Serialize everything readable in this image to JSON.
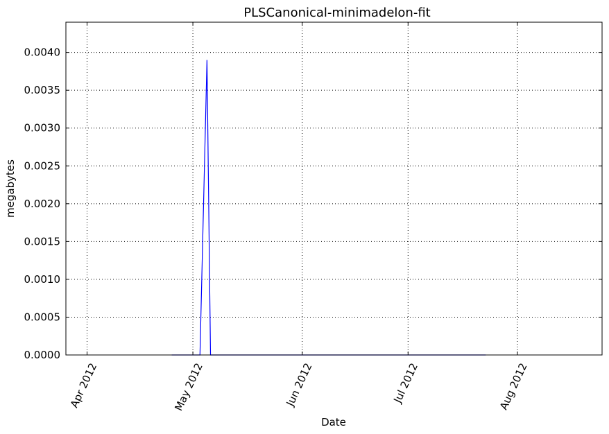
{
  "chart_data": {
    "type": "line",
    "title": "PLSCanonical-minimadelon-fit",
    "xlabel": "Date",
    "ylabel": "megabytes",
    "x_axis_type": "date",
    "xlim": [
      "2012-03-26",
      "2012-08-25"
    ],
    "ylim": [
      0,
      0.0044
    ],
    "grid": true,
    "legend": "none",
    "x_tick_values": [
      "2012-04-01",
      "2012-05-01",
      "2012-06-01",
      "2012-07-01",
      "2012-08-01"
    ],
    "x_tick_labels": [
      "Apr 2012",
      "May 2012",
      "Jun 2012",
      "Jul 2012",
      "Aug 2012"
    ],
    "y_tick_values": [
      0,
      0.0005,
      0.001,
      0.0015,
      0.002,
      0.0025,
      0.003,
      0.0035,
      0.004
    ],
    "y_tick_labels": [
      "0.0000",
      "0.0005",
      "0.0010",
      "0.0015",
      "0.0020",
      "0.0025",
      "0.0030",
      "0.0035",
      "0.0040"
    ],
    "series": [
      {
        "color": "#0000ff",
        "points": [
          {
            "x": "2012-04-25",
            "y": 0
          },
          {
            "x": "2012-05-03",
            "y": 0
          },
          {
            "x": "2012-05-05",
            "y": 0.0039
          },
          {
            "x": "2012-05-06",
            "y": 0
          },
          {
            "x": "2012-07-23",
            "y": 0
          }
        ]
      }
    ]
  }
}
